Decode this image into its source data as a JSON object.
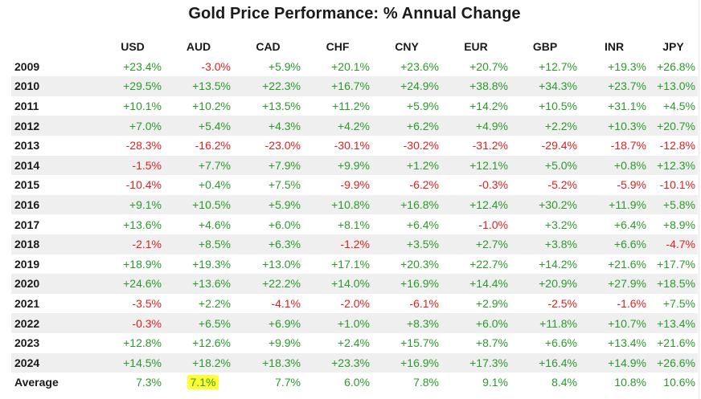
{
  "title": "Gold Price Performance: % Annual Change",
  "colors": {
    "positive": "#2b9a2b",
    "negative": "#e02020",
    "row_shade": "#efefef",
    "highlight": "#ffff33"
  },
  "currencies": [
    "USD",
    "AUD",
    "CAD",
    "CHF",
    "CNY",
    "EUR",
    "GBP",
    "INR",
    "JPY"
  ],
  "rows": [
    {
      "year": "2009",
      "values": [
        "+23.4%",
        "-3.0%",
        "+5.9%",
        "+20.1%",
        "+23.6%",
        "+20.7%",
        "+12.7%",
        "+19.3%",
        "+26.8%"
      ]
    },
    {
      "year": "2010",
      "values": [
        "+29.5%",
        "+13.5%",
        "+22.3%",
        "+16.7%",
        "+24.9%",
        "+38.8%",
        "+34.3%",
        "+23.7%",
        "+13.0%"
      ]
    },
    {
      "year": "2011",
      "values": [
        "+10.1%",
        "+10.2%",
        "+13.5%",
        "+11.2%",
        "+5.9%",
        "+14.2%",
        "+10.5%",
        "+31.1%",
        "+4.5%"
      ]
    },
    {
      "year": "2012",
      "values": [
        "+7.0%",
        "+5.4%",
        "+4.3%",
        "+4.2%",
        "+6.2%",
        "+4.9%",
        "+2.2%",
        "+10.3%",
        "+20.7%"
      ]
    },
    {
      "year": "2013",
      "values": [
        "-28.3%",
        "-16.2%",
        "-23.0%",
        "-30.1%",
        "-30.2%",
        "-31.2%",
        "-29.4%",
        "-18.7%",
        "-12.8%"
      ]
    },
    {
      "year": "2014",
      "values": [
        "-1.5%",
        "+7.7%",
        "+7.9%",
        "+9.9%",
        "+1.2%",
        "+12.1%",
        "+5.0%",
        "+0.8%",
        "+12.3%"
      ]
    },
    {
      "year": "2015",
      "values": [
        "-10.4%",
        "+0.4%",
        "+7.5%",
        "-9.9%",
        "-6.2%",
        "-0.3%",
        "-5.2%",
        "-5.9%",
        "-10.1%"
      ]
    },
    {
      "year": "2016",
      "values": [
        "+9.1%",
        "+10.5%",
        "+5.9%",
        "+10.8%",
        "+16.8%",
        "+12.4%",
        "+30.2%",
        "+11.9%",
        "+5.8%"
      ]
    },
    {
      "year": "2017",
      "values": [
        "+13.6%",
        "+4.6%",
        "+6.0%",
        "+8.1%",
        "+6.4%",
        "-1.0%",
        "+3.2%",
        "+6.4%",
        "+8.9%"
      ]
    },
    {
      "year": "2018",
      "values": [
        "-2.1%",
        "+8.5%",
        "+6.3%",
        "-1.2%",
        "+3.5%",
        "+2.7%",
        "+3.8%",
        "+6.6%",
        "-4.7%"
      ]
    },
    {
      "year": "2019",
      "values": [
        "+18.9%",
        "+19.3%",
        "+13.0%",
        "+17.1%",
        "+20.3%",
        "+22.7%",
        "+14.2%",
        "+21.6%",
        "+17.7%"
      ]
    },
    {
      "year": "2020",
      "values": [
        "+24.6%",
        "+13.6%",
        "+22.2%",
        "+14.0%",
        "+16.9%",
        "+14.4%",
        "+20.9%",
        "+27.9%",
        "+18.5%"
      ]
    },
    {
      "year": "2021",
      "values": [
        "-3.5%",
        "+2.2%",
        "-4.1%",
        "-2.0%",
        "-6.1%",
        "+2.9%",
        "-2.5%",
        "-1.6%",
        "+7.5%"
      ]
    },
    {
      "year": "2022",
      "values": [
        "-0.3%",
        "+6.5%",
        "+6.9%",
        "+1.0%",
        "+8.3%",
        "+6.0%",
        "+11.8%",
        "+10.7%",
        "+13.4%"
      ]
    },
    {
      "year": "2023",
      "values": [
        "+12.8%",
        "+12.6%",
        "+9.9%",
        "+2.4%",
        "+15.7%",
        "+8.7%",
        "+6.6%",
        "+13.4%",
        "+21.6%"
      ]
    },
    {
      "year": "2024",
      "values": [
        "+14.5%",
        "+18.2%",
        "+18.3%",
        "+23.3%",
        "+16.9%",
        "+17.3%",
        "+16.4%",
        "+14.9%",
        "+26.6%"
      ]
    }
  ],
  "average": {
    "label": "Average",
    "values": [
      "7.3%",
      "7.1%",
      "7.7%",
      "6.0%",
      "7.8%",
      "9.1%",
      "8.4%",
      "10.8%",
      "10.6%"
    ],
    "highlighted_currency": "AUD"
  }
}
